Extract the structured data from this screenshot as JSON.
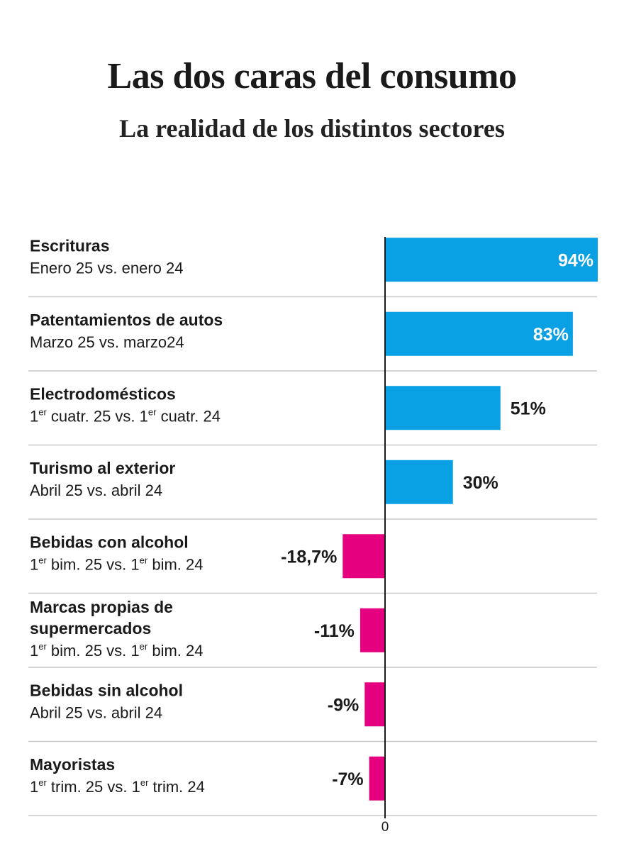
{
  "title": "Las dos caras del consumo",
  "subtitle": "La realidad de los distintos sectores",
  "colors": {
    "positive": "#0aa0e4",
    "negative": "#e4007e",
    "axis": "#1a1a1a",
    "divider": "#c8c8c8"
  },
  "chart_data": {
    "type": "bar",
    "orientation": "horizontal",
    "zero_label": "0",
    "grid": false,
    "legend": "none",
    "xlim": [
      -30,
      94
    ],
    "categories": [
      {
        "name": "Escrituras",
        "period": [
          [
            "Enero 25 vs. enero 24",
            false
          ]
        ],
        "label": "94%"
      },
      {
        "name": "Patentamientos de autos",
        "period": [
          [
            "Marzo 25 vs. marzo24",
            false
          ]
        ],
        "label": "83%"
      },
      {
        "name": "Electrodomésticos",
        "period": [
          [
            "1",
            false
          ],
          [
            "er",
            true
          ],
          [
            " cuatr. 25 vs. 1",
            false
          ],
          [
            "er",
            true
          ],
          [
            " cuatr. 24",
            false
          ]
        ],
        "label": "51%"
      },
      {
        "name": "Turismo al exterior",
        "period": [
          [
            "Abril 25 vs. abril 24",
            false
          ]
        ],
        "label": "30%"
      },
      {
        "name": "Bebidas con alcohol",
        "period": [
          [
            "1",
            false
          ],
          [
            "er",
            true
          ],
          [
            " bim. 25 vs. 1",
            false
          ],
          [
            "er",
            true
          ],
          [
            " bim. 24",
            false
          ]
        ],
        "label": "-18,7%"
      },
      {
        "name": "Marcas propias de supermercados",
        "name_lines": [
          "Marcas propias de",
          "supermercados"
        ],
        "period": [
          [
            "1",
            false
          ],
          [
            "er",
            true
          ],
          [
            " bim. 25 vs. 1",
            false
          ],
          [
            "er",
            true
          ],
          [
            " bim. 24",
            false
          ]
        ],
        "label": "-11%"
      },
      {
        "name": "Bebidas sin alcohol",
        "period": [
          [
            "Abril 25 vs. abril 24",
            false
          ]
        ],
        "label": "-9%"
      },
      {
        "name": "Mayoristas",
        "period": [
          [
            "1",
            false
          ],
          [
            "er",
            true
          ],
          [
            " trim. 25 vs. 1",
            false
          ],
          [
            "er",
            true
          ],
          [
            " trim. 24",
            false
          ]
        ],
        "label": "-7%"
      }
    ],
    "values": [
      94,
      83,
      51,
      30,
      -18.7,
      -11,
      -9,
      -7
    ]
  }
}
